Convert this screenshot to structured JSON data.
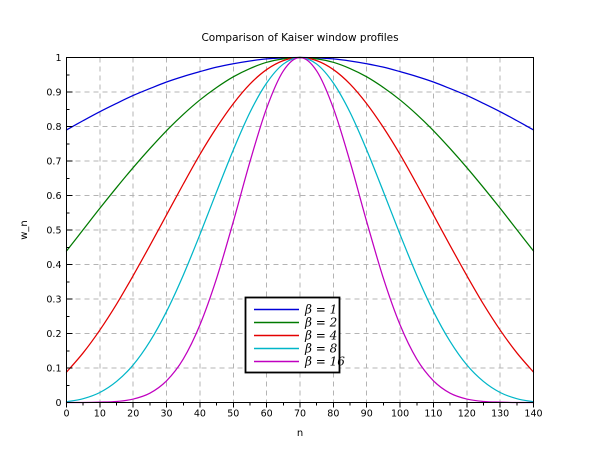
{
  "figure": {
    "title": "Comparison of Kaiser window profiles"
  },
  "chart_data": {
    "type": "line",
    "title": "Comparison of Kaiser window profiles",
    "xlabel": "n",
    "ylabel": "w_n",
    "xlim": [
      0,
      140
    ],
    "ylim": [
      0,
      1
    ],
    "x_major_tick_step": 10,
    "x_minor_tick_step": 5,
    "y_major_tick_step": 0.1,
    "y_minor_tick_step": 0.05,
    "grid": true,
    "grid_style": "dashed",
    "grid_color": "#b4b4b4",
    "axis_color": "#000000",
    "legend_position": "inside-bottom-center",
    "x": [
      0,
      5,
      10,
      15,
      20,
      25,
      30,
      35,
      40,
      45,
      50,
      55,
      60,
      65,
      70,
      75,
      80,
      85,
      90,
      95,
      100,
      105,
      110,
      115,
      120,
      125,
      130,
      135,
      140
    ],
    "series": [
      {
        "name": "β = 1",
        "beta": 1,
        "color": "#0000d8",
        "values": [
          0.79,
          0.817,
          0.843,
          0.867,
          0.89,
          0.91,
          0.929,
          0.945,
          0.959,
          0.972,
          0.982,
          0.99,
          0.996,
          0.999,
          1,
          0.999,
          0.996,
          0.99,
          0.982,
          0.972,
          0.959,
          0.945,
          0.929,
          0.91,
          0.89,
          0.867,
          0.843,
          0.817,
          0.79
        ]
      },
      {
        "name": "β = 2",
        "beta": 2,
        "color": "#007a00",
        "values": [
          0.439,
          0.501,
          0.563,
          0.623,
          0.681,
          0.736,
          0.788,
          0.835,
          0.877,
          0.913,
          0.944,
          0.968,
          0.986,
          0.996,
          1,
          0.996,
          0.986,
          0.968,
          0.944,
          0.913,
          0.877,
          0.835,
          0.788,
          0.736,
          0.681,
          0.623,
          0.563,
          0.501,
          0.439
        ]
      },
      {
        "name": "β = 4",
        "beta": 4,
        "color": "#e40000",
        "values": [
          0.088,
          0.144,
          0.21,
          0.285,
          0.368,
          0.455,
          0.544,
          0.633,
          0.719,
          0.797,
          0.866,
          0.923,
          0.965,
          0.991,
          1,
          0.991,
          0.965,
          0.923,
          0.866,
          0.797,
          0.719,
          0.633,
          0.544,
          0.455,
          0.368,
          0.285,
          0.21,
          0.144,
          0.088
        ]
      },
      {
        "name": "β = 8",
        "beta": 8,
        "color": "#00b6c8",
        "values": [
          0.002,
          0.011,
          0.029,
          0.061,
          0.109,
          0.177,
          0.264,
          0.369,
          0.487,
          0.611,
          0.732,
          0.841,
          0.926,
          0.981,
          1,
          0.981,
          0.926,
          0.841,
          0.732,
          0.611,
          0.487,
          0.369,
          0.264,
          0.177,
          0.109,
          0.061,
          0.029,
          0.011,
          0.002
        ]
      },
      {
        "name": "β = 16",
        "beta": 16,
        "color": "#c000c0",
        "values": [
          0,
          0,
          0.001,
          0.003,
          0.01,
          0.027,
          0.063,
          0.126,
          0.225,
          0.36,
          0.524,
          0.698,
          0.853,
          0.961,
          1,
          0.961,
          0.853,
          0.698,
          0.524,
          0.36,
          0.225,
          0.126,
          0.063,
          0.027,
          0.01,
          0.003,
          0.001,
          0,
          0
        ]
      }
    ]
  }
}
